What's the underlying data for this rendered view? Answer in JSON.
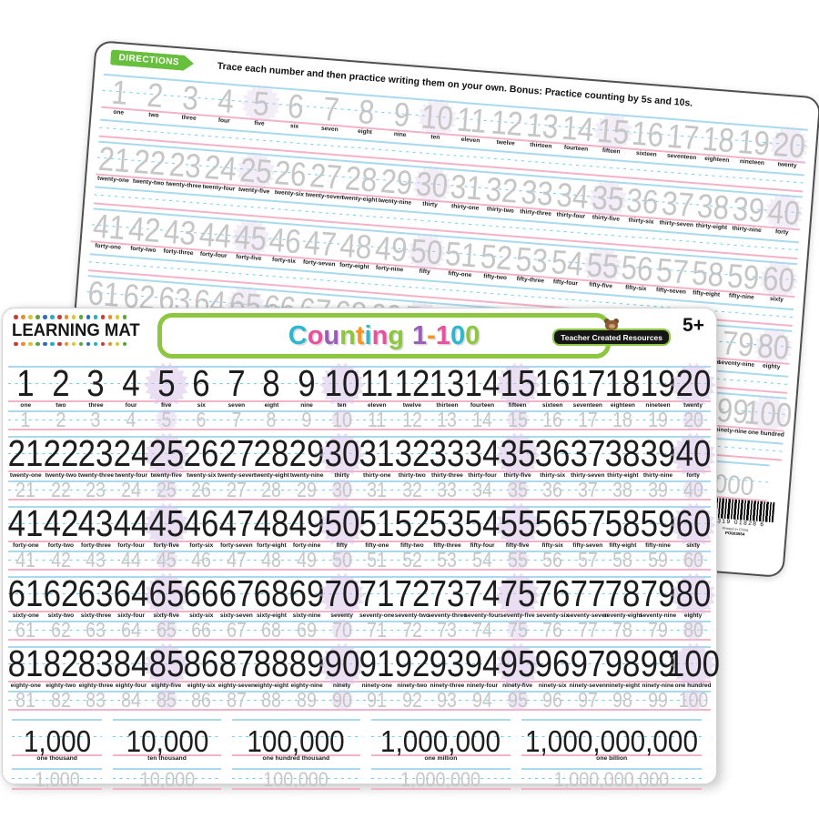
{
  "product": {
    "brand": "LEARNING MAT",
    "title": "Counting 1-100",
    "publisher": "Teacher Created Resources",
    "age_badge": "5+"
  },
  "title_letters": [
    {
      "ch": "C",
      "color": "#2cb8cf"
    },
    {
      "ch": "o",
      "color": "#e8519d"
    },
    {
      "ch": "u",
      "color": "#9a5fb5"
    },
    {
      "ch": "n",
      "color": "#8dc63f"
    },
    {
      "ch": "t",
      "color": "#f7941d"
    },
    {
      "ch": "i",
      "color": "#2cb8cf"
    },
    {
      "ch": "n",
      "color": "#e8519d"
    },
    {
      "ch": "g",
      "color": "#8dc63f"
    },
    {
      "ch": " ",
      "color": ""
    },
    {
      "ch": "1",
      "color": "#9a5fb5"
    },
    {
      "ch": "-",
      "color": "#f7941d"
    },
    {
      "ch": "1",
      "color": "#e8519d"
    },
    {
      "ch": "0",
      "color": "#2cb8cf"
    },
    {
      "ch": "0",
      "color": "#8dc63f"
    }
  ],
  "directions": {
    "label": "DIRECTIONS",
    "text": "Trace each number and then practice writing them on your own. Bonus: Practice counting by 5s and 10s."
  },
  "rows": [
    {
      "numbers": [
        1,
        2,
        3,
        4,
        5,
        6,
        7,
        8,
        9,
        10,
        11,
        12,
        13,
        14,
        15,
        16,
        17,
        18,
        19,
        20
      ],
      "words": [
        "one",
        "two",
        "three",
        "four",
        "five",
        "six",
        "seven",
        "eight",
        "nine",
        "ten",
        "eleven",
        "twelve",
        "thirteen",
        "fourteen",
        "fifteen",
        "sixteen",
        "seventeen",
        "eighteen",
        "nineteen",
        "twenty"
      ]
    },
    {
      "numbers": [
        21,
        22,
        23,
        24,
        25,
        26,
        27,
        28,
        29,
        30,
        31,
        32,
        33,
        34,
        35,
        36,
        37,
        38,
        39,
        40
      ],
      "words": [
        "twenty-one",
        "twenty-two",
        "twenty-three",
        "twenty-four",
        "twenty-five",
        "twenty-six",
        "twenty-seven",
        "twenty-eight",
        "twenty-nine",
        "thirty",
        "thirty-one",
        "thirty-two",
        "thirty-three",
        "thirty-four",
        "thirty-five",
        "thirty-six",
        "thirty-seven",
        "thirty-eight",
        "thirty-nine",
        "forty"
      ]
    },
    {
      "numbers": [
        41,
        42,
        43,
        44,
        45,
        46,
        47,
        48,
        49,
        50,
        51,
        52,
        53,
        54,
        55,
        56,
        57,
        58,
        59,
        60
      ],
      "words": [
        "forty-one",
        "forty-two",
        "forty-three",
        "forty-four",
        "forty-five",
        "forty-six",
        "forty-seven",
        "forty-eight",
        "forty-nine",
        "fifty",
        "fifty-one",
        "fifty-two",
        "fifty-three",
        "fifty-four",
        "fifty-five",
        "fifty-six",
        "fifty-seven",
        "fifty-eight",
        "fifty-nine",
        "sixty"
      ]
    },
    {
      "numbers": [
        61,
        62,
        63,
        64,
        65,
        66,
        67,
        68,
        69,
        70,
        71,
        72,
        73,
        74,
        75,
        76,
        77,
        78,
        79,
        80
      ],
      "words": [
        "sixty-one",
        "sixty-two",
        "sixty-three",
        "sixty-four",
        "sixty-five",
        "sixty-six",
        "sixty-seven",
        "sixty-eight",
        "sixty-nine",
        "seventy",
        "seventy-one",
        "seventy-two",
        "seventy-three",
        "seventy-four",
        "seventy-five",
        "seventy-six",
        "seventy-seven",
        "seventy-eight",
        "seventy-nine",
        "eighty"
      ]
    },
    {
      "numbers": [
        81,
        82,
        83,
        84,
        85,
        86,
        87,
        88,
        89,
        90,
        91,
        92,
        93,
        94,
        95,
        96,
        97,
        98,
        99,
        100
      ],
      "words": [
        "eighty-one",
        "eighty-two",
        "eighty-three",
        "eighty-four",
        "eighty-five",
        "eighty-six",
        "eighty-seven",
        "eighty-eight",
        "eighty-nine",
        "ninety",
        "ninety-one",
        "ninety-two",
        "ninety-three",
        "ninety-four",
        "ninety-five",
        "ninety-six",
        "ninety-seven",
        "ninety-eight",
        "ninety-nine",
        "one hundred"
      ]
    }
  ],
  "big_numbers": [
    {
      "value": "1,000",
      "word": "one thousand"
    },
    {
      "value": "10,000",
      "word": "ten thousand"
    },
    {
      "value": "100,000",
      "word": "one hundred thousand"
    },
    {
      "value": "1,000,000",
      "word": "one million"
    },
    {
      "value": "1,000,000,000",
      "word": "one billion"
    }
  ],
  "barcode": {
    "digits": "82319 01828",
    "check_digit": "6",
    "printed_in": "Printed in China",
    "po_number": "PO603554"
  },
  "colors": {
    "line_blue": "#a9d9ef",
    "line_dash": "#6ecfec",
    "line_pink": "#f3b3c7",
    "starburst": "#d9c5e8",
    "trace_gray": "#c6c6c6",
    "green": "#8dc63f",
    "badge_green": "#67bf3d",
    "dots": [
      "#cf3a30",
      "#e88f2a",
      "#ddc62b",
      "#5aa53d",
      "#2e70bd",
      "#27aec6"
    ]
  }
}
